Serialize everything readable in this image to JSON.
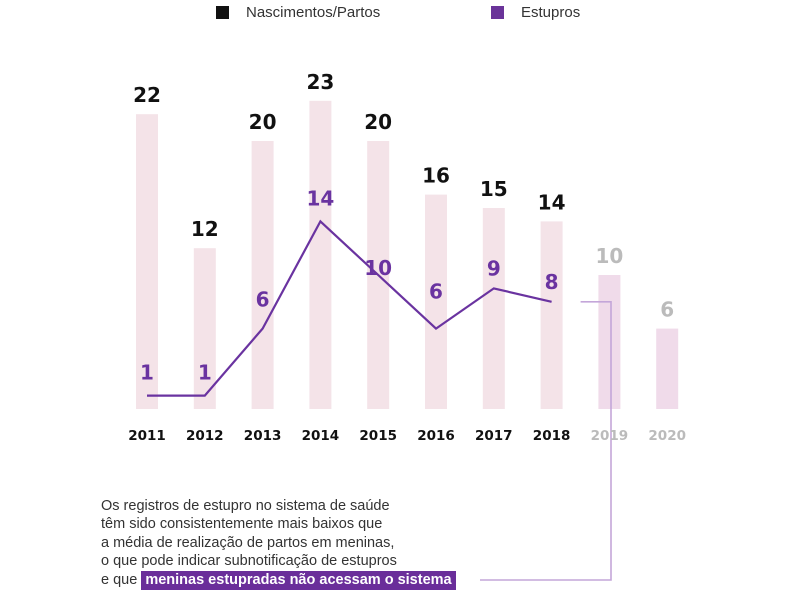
{
  "legend": {
    "items": [
      {
        "label": "Nascimentos/Partos",
        "color": "#111111"
      },
      {
        "label": "Estupros",
        "color": "#6a3399"
      }
    ]
  },
  "colors": {
    "bar": "#f4e3e8",
    "bar_projected": "#f0dbea",
    "line": "#6a33a0",
    "label_birth": "#111111",
    "label_rape": "#6a33a0",
    "label_projected": "#bbbbbb",
    "connector": "#c4a6d9"
  },
  "chart_data": {
    "type": "bar",
    "title": "",
    "xlabel": "",
    "ylabel": "",
    "categories": [
      "2011",
      "2012",
      "2013",
      "2014",
      "2015",
      "2016",
      "2017",
      "2018",
      "2019",
      "2020"
    ],
    "projected_categories": [
      "2019",
      "2020"
    ],
    "series": [
      {
        "name": "Nascimentos/Partos",
        "type": "bar",
        "values": [
          22,
          12,
          20,
          23,
          20,
          16,
          15,
          14,
          10,
          6
        ]
      },
      {
        "name": "Estupros",
        "type": "line",
        "values": [
          1,
          1,
          6,
          14,
          10,
          6,
          9,
          8,
          null,
          null
        ]
      }
    ],
    "ylim": [
      0,
      23
    ],
    "grid": false,
    "legend": "top"
  },
  "caption": {
    "lines": [
      "Os registros de estupro no sistema de saúde",
      "têm sido consistentemente mais baixos que",
      "a média de realização de partos em meninas,",
      "o que pode indicar subnotificação de estupros"
    ],
    "last_prefix": "e que",
    "highlight": "meninas estupradas não acessam o sistema"
  }
}
